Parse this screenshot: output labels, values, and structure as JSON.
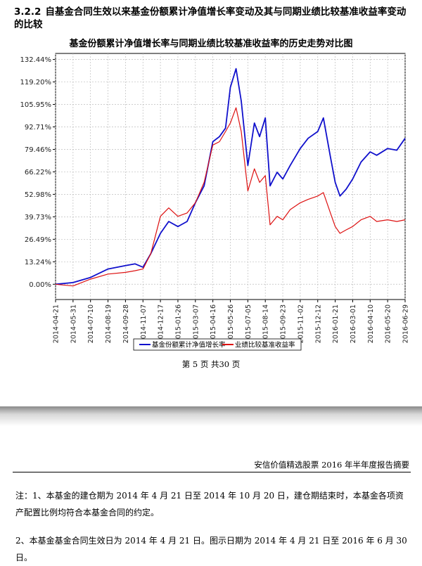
{
  "section": {
    "number": "3.2.2",
    "title": "自基金合同生效以来基金份额累计净值增长率变动及其与同期业绩比较基准收益率变动的比较"
  },
  "chart_data": {
    "type": "line",
    "title": "基金份额累计净值增长率与同期业绩比较基准收益率的历史走势对比图",
    "x_ticks": [
      "2014-04-21",
      "2014-05-31",
      "2014-07-10",
      "2014-08-19",
      "2014-09-28",
      "2014-11-07",
      "2014-12-17",
      "2015-01-26",
      "2015-03-07",
      "2015-04-16",
      "2015-05-26",
      "2015-07-05",
      "2015-08-14",
      "2015-09-23",
      "2015-11-02",
      "2015-12-12",
      "2016-01-21",
      "2016-03-01",
      "2016-04-10",
      "2016-05-20",
      "2016-06-29"
    ],
    "y_ticks": [
      "0.00%",
      "13.24%",
      "26.49%",
      "39.73%",
      "52.98%",
      "66.22%",
      "79.46%",
      "92.71%",
      "105.95%",
      "119.20%",
      "132.44%"
    ],
    "ylim": [
      -9,
      136
    ],
    "grid": true,
    "legend_position": "bottom",
    "series": [
      {
        "name": "基金份额累计净值增长率",
        "color": "#1010cc",
        "points": [
          [
            "2014-04-21",
            0
          ],
          [
            "2014-05-31",
            1
          ],
          [
            "2014-07-10",
            4
          ],
          [
            "2014-08-19",
            9
          ],
          [
            "2014-09-28",
            11
          ],
          [
            "2014-10-20",
            12
          ],
          [
            "2014-11-07",
            10
          ],
          [
            "2014-11-25",
            18
          ],
          [
            "2014-12-17",
            30
          ],
          [
            "2015-01-05",
            37
          ],
          [
            "2015-01-26",
            34
          ],
          [
            "2015-02-16",
            37
          ],
          [
            "2015-03-07",
            48
          ],
          [
            "2015-03-27",
            58
          ],
          [
            "2015-04-16",
            84
          ],
          [
            "2015-05-01",
            87
          ],
          [
            "2015-05-15",
            92
          ],
          [
            "2015-05-26",
            116
          ],
          [
            "2015-06-08",
            127
          ],
          [
            "2015-06-20",
            108
          ],
          [
            "2015-07-05",
            70
          ],
          [
            "2015-07-20",
            95
          ],
          [
            "2015-08-01",
            87
          ],
          [
            "2015-08-14",
            98
          ],
          [
            "2015-08-25",
            58
          ],
          [
            "2015-09-10",
            66
          ],
          [
            "2015-09-23",
            62
          ],
          [
            "2015-10-10",
            70
          ],
          [
            "2015-11-02",
            80
          ],
          [
            "2015-11-20",
            86
          ],
          [
            "2015-12-12",
            90
          ],
          [
            "2015-12-25",
            98
          ],
          [
            "2016-01-10",
            75
          ],
          [
            "2016-01-21",
            60
          ],
          [
            "2016-02-01",
            52
          ],
          [
            "2016-02-15",
            56
          ],
          [
            "2016-03-01",
            62
          ],
          [
            "2016-03-20",
            72
          ],
          [
            "2016-04-10",
            78
          ],
          [
            "2016-04-25",
            76
          ],
          [
            "2016-05-20",
            80
          ],
          [
            "2016-06-10",
            79
          ],
          [
            "2016-06-29",
            86
          ]
        ]
      },
      {
        "name": "业绩比较基准收益率",
        "color": "#dd1111",
        "points": [
          [
            "2014-04-21",
            0
          ],
          [
            "2014-05-31",
            -1
          ],
          [
            "2014-07-10",
            3
          ],
          [
            "2014-08-19",
            6
          ],
          [
            "2014-09-28",
            7
          ],
          [
            "2014-10-20",
            8
          ],
          [
            "2014-11-07",
            9
          ],
          [
            "2014-11-25",
            18
          ],
          [
            "2014-12-17",
            40
          ],
          [
            "2015-01-05",
            45
          ],
          [
            "2015-01-26",
            40
          ],
          [
            "2015-02-16",
            42
          ],
          [
            "2015-03-07",
            48
          ],
          [
            "2015-03-27",
            60
          ],
          [
            "2015-04-16",
            82
          ],
          [
            "2015-05-01",
            84
          ],
          [
            "2015-05-15",
            90
          ],
          [
            "2015-05-26",
            95
          ],
          [
            "2015-06-08",
            104
          ],
          [
            "2015-06-20",
            90
          ],
          [
            "2015-07-05",
            55
          ],
          [
            "2015-07-20",
            68
          ],
          [
            "2015-08-01",
            60
          ],
          [
            "2015-08-14",
            64
          ],
          [
            "2015-08-25",
            35
          ],
          [
            "2015-09-10",
            40
          ],
          [
            "2015-09-23",
            38
          ],
          [
            "2015-10-10",
            44
          ],
          [
            "2015-11-02",
            48
          ],
          [
            "2015-11-20",
            50
          ],
          [
            "2015-12-12",
            52
          ],
          [
            "2015-12-25",
            54
          ],
          [
            "2016-01-10",
            42
          ],
          [
            "2016-01-21",
            34
          ],
          [
            "2016-02-01",
            30
          ],
          [
            "2016-02-15",
            32
          ],
          [
            "2016-03-01",
            34
          ],
          [
            "2016-03-20",
            38
          ],
          [
            "2016-04-10",
            40
          ],
          [
            "2016-04-25",
            37
          ],
          [
            "2016-05-20",
            38
          ],
          [
            "2016-06-10",
            37
          ],
          [
            "2016-06-29",
            38
          ]
        ]
      }
    ]
  },
  "page_footer": "第 5 页 共30 页",
  "running_header": "安信价值精选股票 2016 年半年度报告摘要",
  "notes": [
    "注：1、本基金的建仓期为 2014 年 4 月 21 日至 2014 年 10 月 20 日，建仓期结束时，本基金各项资产配置比例均符合本基金合同的约定。",
    "2、本基金基金合同生效日为 2014 年 4 月 21 日。图示日期为 2014 年 4 月 21 日至 2016 年 6 月 30 日。"
  ]
}
